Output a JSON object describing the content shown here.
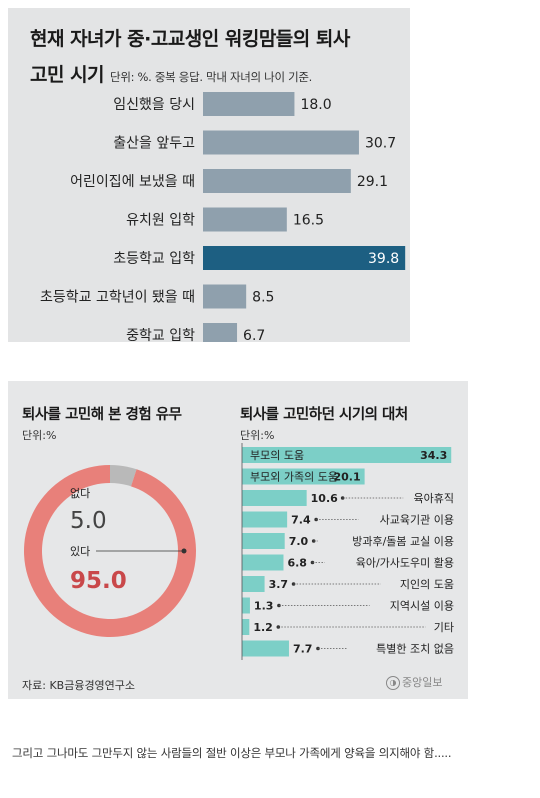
{
  "chart_data": [
    {
      "type": "bar",
      "orientation": "horizontal",
      "title": "현재 자녀가 중·고교생인 워킹맘들의 퇴사 고민 시기",
      "title_line1": "현재 자녀가 중·고교생인 워킹맘들의 퇴사",
      "title_line2": "고민 시기",
      "note": "단위: %. 중복 응답. 막내 자녀의 나이 기준.",
      "categories": [
        "임신했을 당시",
        "출산을 앞두고",
        "어린이집에 보냈을 때",
        "유치원 입학",
        "초등학교 입학",
        "초등학교 고학년이 됐을 때",
        "중학교 입학"
      ],
      "values": [
        18.0,
        30.7,
        29.1,
        16.5,
        39.8,
        8.5,
        6.7
      ],
      "value_labels": [
        "18.0",
        "30.7",
        "29.1",
        "16.5",
        "39.8",
        "8.5",
        "6.7"
      ],
      "highlight_index": 4,
      "colors": {
        "bar": "#8fa0ad",
        "highlight": "#1d5f82",
        "highlight_text": "#ffffff"
      },
      "xlim": [
        0,
        40
      ]
    },
    {
      "type": "pie",
      "subtype": "donut",
      "title": "퇴사를 고민해 본 경험 유무",
      "unit": "단위:%",
      "slices": [
        {
          "label": "없다",
          "value": 5.0,
          "value_label": "5.0",
          "color": "#b9b9b9"
        },
        {
          "label": "있다",
          "value": 95.0,
          "value_label": "95.0",
          "color": "#e8807a"
        }
      ],
      "value_color_yes": "#c9484a"
    },
    {
      "type": "bar",
      "orientation": "horizontal",
      "title": "퇴사를 고민하던 시기의 대처",
      "unit": "단위:%",
      "categories": [
        "부모의 도움",
        "부모외 가족의 도움",
        "육아휴직",
        "사교육기관 이용",
        "방과후/돌봄 교실 이용",
        "육아/가사도우미 활용",
        "지인의 도움",
        "지역시설 이용",
        "기타",
        "특별한 조치 없음"
      ],
      "values": [
        34.3,
        20.1,
        10.6,
        7.4,
        7.0,
        6.8,
        3.7,
        1.3,
        1.2,
        7.7
      ],
      "value_labels": [
        "34.3",
        "20.1",
        "10.6",
        "7.4",
        "7.0",
        "6.8",
        "3.7",
        "1.3",
        "1.2",
        "7.7"
      ],
      "colors": {
        "bar": "#7ccfc7"
      },
      "xlim": [
        0,
        35
      ]
    }
  ],
  "source": "자료: KB금융경영연구소",
  "logo": "중앙일보",
  "caption": "그리고 그나마도 그만두지 않는 사람들의 절반 이상은 부모나 가족에게 양육을 의지해야 함....."
}
